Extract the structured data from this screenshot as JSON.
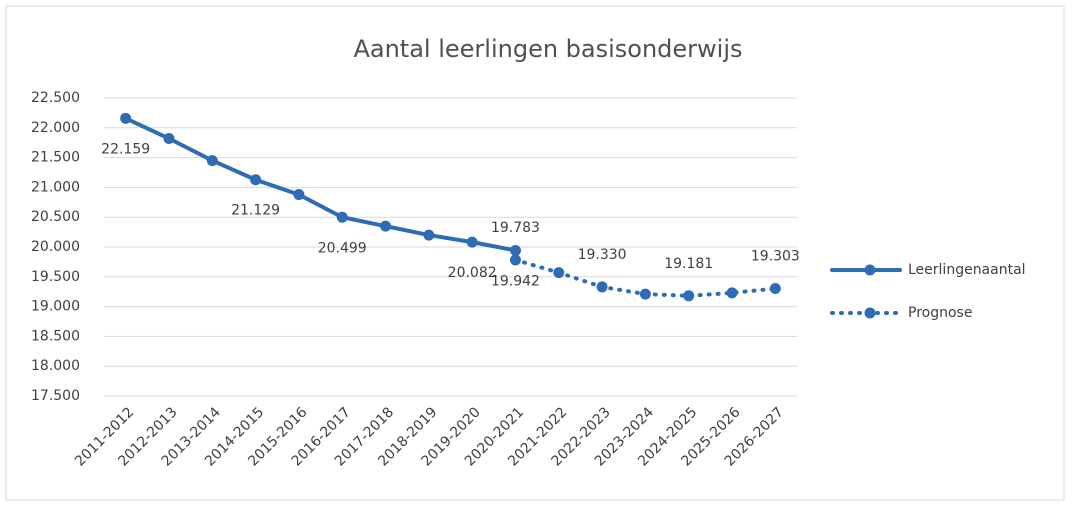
{
  "chart_data": {
    "type": "line",
    "title": "Aantal leerlingen basisonderwijs",
    "categories": [
      "2011-2012",
      "2012-2013",
      "2013-2014",
      "2014-2015",
      "2015-2016",
      "2016-2017",
      "2017-2018",
      "2018-2019",
      "2019-2020",
      "2020-2021",
      "2021-2022",
      "2022-2023",
      "2023-2024",
      "2024-2025",
      "2025-2026",
      "2026-2027"
    ],
    "series": [
      {
        "name": "Leerlingenaantal",
        "color": "#2e6db4",
        "style": "solid",
        "values": [
          22159,
          21820,
          21450,
          21129,
          20880,
          20499,
          20350,
          20200,
          20082,
          19942,
          null,
          null,
          null,
          null,
          null,
          null
        ],
        "value_labels": [
          "22.159",
          null,
          null,
          "21.129",
          null,
          "20.499",
          null,
          null,
          "20.082",
          "19.942",
          null,
          null,
          null,
          null,
          null,
          null
        ]
      },
      {
        "name": "Prognose",
        "color": "#2e6db4",
        "style": "dotted",
        "values": [
          null,
          null,
          null,
          null,
          null,
          null,
          null,
          null,
          null,
          19783,
          19570,
          19330,
          19210,
          19181,
          19230,
          19303
        ],
        "value_labels": [
          null,
          null,
          null,
          null,
          null,
          null,
          null,
          null,
          null,
          "19.783",
          null,
          "19.330",
          null,
          "19.181",
          null,
          "19.303"
        ]
      }
    ],
    "ylim": [
      17500,
      22500
    ],
    "yticks": [
      {
        "value": 17500,
        "label": "17.500"
      },
      {
        "value": 18000,
        "label": "18.000"
      },
      {
        "value": 18500,
        "label": "18.500"
      },
      {
        "value": 19000,
        "label": "19.000"
      },
      {
        "value": 19500,
        "label": "19.500"
      },
      {
        "value": 20000,
        "label": "20.000"
      },
      {
        "value": 20500,
        "label": "20.500"
      },
      {
        "value": 21000,
        "label": "21.000"
      },
      {
        "value": 21500,
        "label": "21.500"
      },
      {
        "value": 22000,
        "label": "22.000"
      },
      {
        "value": 22500,
        "label": "22.500"
      }
    ],
    "grid": true,
    "legend": "right"
  }
}
